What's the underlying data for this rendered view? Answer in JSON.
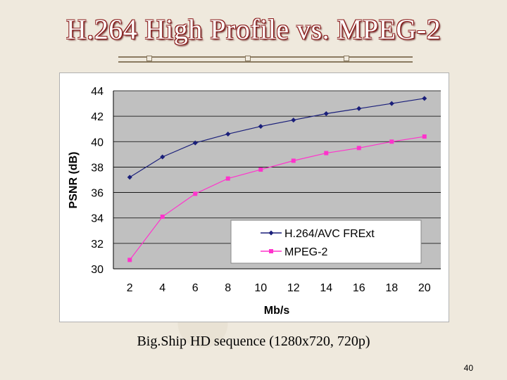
{
  "slide": {
    "title": "H.264 High Profile vs. MPEG-2",
    "caption": "Big.Ship HD sequence (1280x720, 720p)",
    "page_number": "40"
  },
  "chart_data": {
    "type": "line",
    "xlabel": "Mb/s",
    "ylabel": "PSNR (dB)",
    "x": [
      2,
      4,
      6,
      8,
      10,
      12,
      14,
      16,
      18,
      20
    ],
    "xticks": [
      "2",
      "4",
      "6",
      "8",
      "10",
      "12",
      "14",
      "16",
      "18",
      "20"
    ],
    "yticks": [
      "30",
      "32",
      "34",
      "36",
      "38",
      "40",
      "42",
      "44"
    ],
    "ylim": [
      30,
      44
    ],
    "grid": true,
    "legend_position": "bottom-right",
    "series": [
      {
        "name": "H.264/AVC FRExt",
        "color": "#1a1f7a",
        "marker": "diamond",
        "values": [
          37.2,
          38.8,
          39.9,
          40.6,
          41.2,
          41.7,
          42.2,
          42.6,
          43.0,
          43.4
        ]
      },
      {
        "name": "MPEG-2",
        "color": "#ff33cc",
        "marker": "square",
        "values": [
          30.7,
          34.1,
          35.9,
          37.1,
          37.8,
          38.5,
          39.1,
          39.5,
          40.0,
          40.4
        ]
      }
    ]
  }
}
